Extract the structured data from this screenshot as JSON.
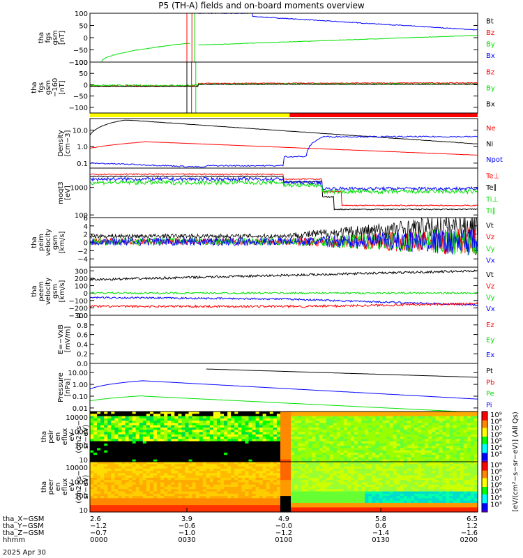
{
  "title": "P5 (TH-A) fields and on-board moments overview",
  "colors": {
    "black": "#000000",
    "red": "#ff0000",
    "green": "#00e000",
    "blue": "#0000ff",
    "yellow": "#ffff00",
    "orange": "#ff8000"
  },
  "chart_data": [
    {
      "type": "line",
      "ylabel": [
        "tha",
        "fgs",
        "gsm",
        "[nT]"
      ],
      "ylim": [
        -100,
        100
      ],
      "yticks": [
        "100",
        "50",
        "0",
        "−50",
        "−100"
      ],
      "legend": [
        {
          "name": "Bt",
          "color": "black"
        },
        {
          "name": "Bz",
          "color": "red"
        },
        {
          "name": "By",
          "color": "green"
        },
        {
          "name": "Bx",
          "color": "blue"
        }
      ]
    },
    {
      "type": "line",
      "ylabel": [
        "tha",
        "fgs",
        "gsm",
        "−160",
        "[nT]"
      ],
      "ylim": [
        -125,
        100
      ],
      "yticks": [
        "100",
        "50",
        "0",
        "−50",
        "−100"
      ],
      "legend": [
        {
          "name": "Bz",
          "color": "red"
        },
        {
          "name": "By",
          "color": "green"
        },
        {
          "name": "Bx",
          "color": "black"
        }
      ]
    },
    {
      "type": "line",
      "ylabel": [
        "Density",
        "[cm−3]"
      ],
      "ylim": [
        0.05,
        50
      ],
      "scale": "log",
      "yticks": [
        "10.0",
        "1.0",
        "0.1"
      ],
      "legend": [
        {
          "name": "Ne",
          "color": "red"
        },
        {
          "name": "Ni",
          "color": "black"
        },
        {
          "name": "Npot",
          "color": "blue"
        }
      ]
    },
    {
      "type": "line",
      "ylabel": [
        "moqt3",
        "[eV]"
      ],
      "ylim": [
        80,
        5000
      ],
      "scale": "log",
      "yticks": [
        "1000",
        "100"
      ],
      "legend": [
        {
          "name": "Te⊥",
          "color": "red"
        },
        {
          "name": "Te∥",
          "color": "black"
        },
        {
          "name": "Ti⊥",
          "color": "green"
        },
        {
          "name": "Ti∥",
          "color": "green"
        }
      ]
    },
    {
      "type": "line",
      "ylabel": [
        "tha",
        "peim",
        "velocity",
        "gsm",
        "[km/s]"
      ],
      "ylim": [
        -6,
        6
      ],
      "yticks": [
        "6",
        "4",
        "2",
        "0",
        "−2",
        "−4"
      ],
      "legend": [
        {
          "name": "Vt",
          "color": "black"
        },
        {
          "name": "Vz",
          "color": "red"
        },
        {
          "name": "Vy",
          "color": "green"
        },
        {
          "name": "Vx",
          "color": "blue"
        }
      ]
    },
    {
      "type": "line",
      "ylabel": [
        "tha",
        "peem",
        "velocity",
        "gsm",
        "[km/s]"
      ],
      "ylim": [
        -300,
        350
      ],
      "yticks": [
        "300",
        "200",
        "100",
        "0",
        "−100",
        "−200",
        "−300"
      ],
      "legend": [
        {
          "name": "Vt",
          "color": "black"
        },
        {
          "name": "Vz",
          "color": "red"
        },
        {
          "name": "Vy",
          "color": "green"
        },
        {
          "name": "Vx",
          "color": "blue"
        }
      ]
    },
    {
      "type": "line",
      "ylabel": [
        "E=−VxB",
        "[mV/m]"
      ],
      "ylim": [
        0,
        1
      ],
      "yticks": [
        "1.0",
        "0.8",
        "0.6",
        "0.4",
        "0.2",
        "0.0"
      ],
      "legend": [
        {
          "name": "Ez",
          "color": "red"
        },
        {
          "name": "Ey",
          "color": "green"
        },
        {
          "name": "Ex",
          "color": "blue"
        }
      ]
    },
    {
      "type": "line",
      "ylabel": [
        "Pressure",
        "[nPa]"
      ],
      "ylim": [
        0.005,
        60
      ],
      "scale": "log",
      "yticks": [
        "10.00",
        "1.00",
        "0.10",
        "0.01"
      ],
      "legend": [
        {
          "name": "Pt",
          "color": "black"
        },
        {
          "name": "Pb",
          "color": "red"
        },
        {
          "name": "Pe",
          "color": "green"
        },
        {
          "name": "Pi",
          "color": "blue"
        }
      ]
    },
    {
      "type": "heatmap",
      "ylabel": [
        "tha",
        "peir",
        "en",
        "eflux",
        "eV",
        "(cm2−s−",
        "sr−eV)"
      ],
      "ylim": [
        7,
        25000
      ],
      "scale": "log",
      "yticks": [
        "10000",
        "1000",
        "100",
        "10"
      ]
    },
    {
      "type": "heatmap",
      "ylabel": [
        "tha",
        "peer",
        "en",
        "eflux",
        "eV",
        "(cm2−s−",
        "sr−eV)"
      ],
      "ylim": [
        7,
        25000
      ],
      "scale": "log",
      "yticks": [
        "10000",
        "1000",
        "100",
        "10"
      ]
    }
  ],
  "colorbar": {
    "label": "[eV/(cm²−s−sr−eV)] (All Qs)",
    "ticks": [
      "10⁹",
      "10⁸",
      "10⁷",
      "10⁶",
      "10⁵",
      "10⁴",
      "10³"
    ]
  },
  "x_axis": {
    "rows": [
      {
        "label": "tha_X−GSM",
        "values": [
          "2.6",
          "3.9",
          "4.9",
          "5.8",
          "6.5"
        ]
      },
      {
        "label": "tha_Y−GSM",
        "values": [
          "−1.2",
          "−0.6",
          "−0.0",
          "0.6",
          "1.2"
        ]
      },
      {
        "label": "tha_Z−GSM",
        "values": [
          "−0.7",
          "−1.0",
          "−1.2",
          "−1.4",
          "−1.6"
        ]
      },
      {
        "label": "hhmm",
        "values": [
          "0000",
          "0030",
          "0100",
          "0130",
          "0200"
        ]
      }
    ],
    "date": "2025 Apr 30"
  }
}
